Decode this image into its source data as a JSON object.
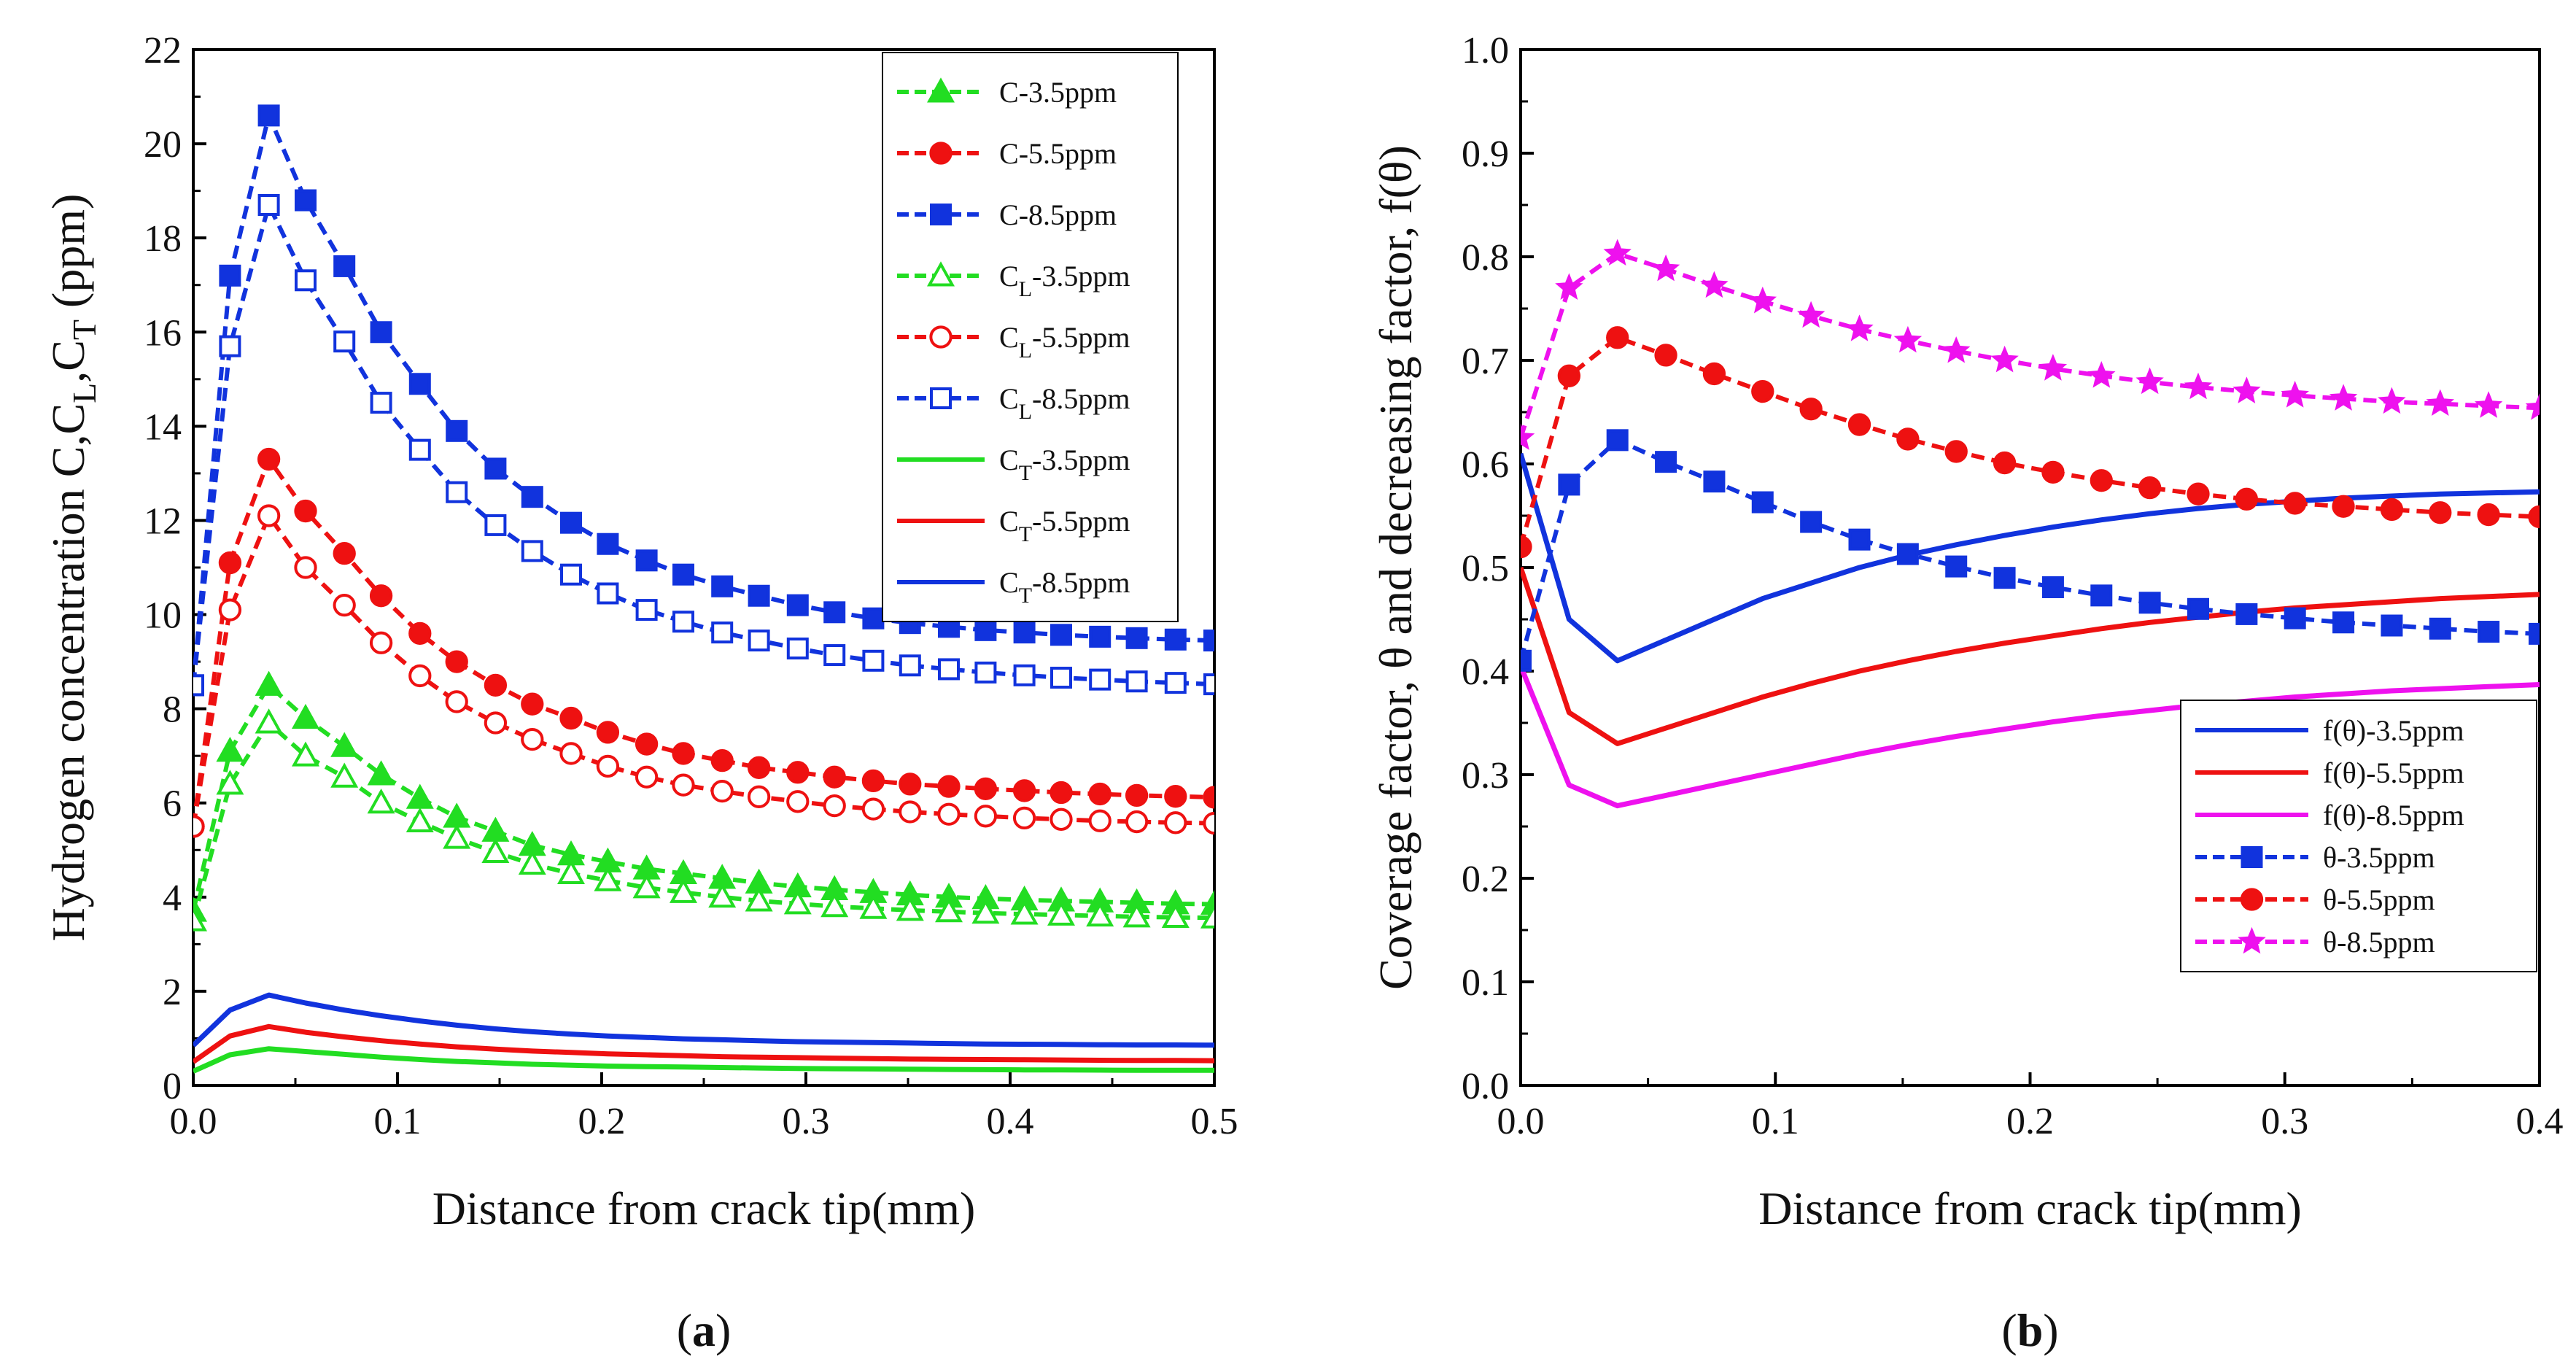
{
  "chart_data": [
    {
      "type": "line",
      "panel_label": "(a)",
      "panel_label_letter": "a",
      "xlabel": "Distance from crack tip(mm)",
      "ylabel": "Hydrogen concentration C,C_L,C_T (ppm)",
      "ylabel_parts": [
        "Hydrogen concentration C,C",
        "L",
        ",C",
        "T",
        " (ppm)"
      ],
      "xlim": [
        0,
        0.5
      ],
      "ylim": [
        0,
        22
      ],
      "xticks": [
        "0.0",
        "0.1",
        "0.2",
        "0.3",
        "0.4",
        "0.5"
      ],
      "yticks": [
        "0",
        "2",
        "4",
        "6",
        "8",
        "10",
        "12",
        "14",
        "16",
        "18",
        "20",
        "22"
      ],
      "legend_position": "top-right",
      "x": [
        0.0,
        0.018,
        0.037,
        0.055,
        0.074,
        0.092,
        0.111,
        0.129,
        0.148,
        0.166,
        0.185,
        0.203,
        0.222,
        0.24,
        0.259,
        0.277,
        0.296,
        0.314,
        0.333,
        0.351,
        0.37,
        0.388,
        0.407,
        0.425,
        0.444,
        0.462,
        0.481,
        0.5
      ],
      "series": [
        {
          "name": "C-3.5ppm",
          "main": "C",
          "sub": "",
          "suffix": "-3.5ppm",
          "color": "#22dd22",
          "marker": "triangle",
          "filled": true,
          "dashed": true,
          "values": [
            3.7,
            7.1,
            8.5,
            7.8,
            7.2,
            6.6,
            6.1,
            5.7,
            5.4,
            5.1,
            4.9,
            4.75,
            4.6,
            4.5,
            4.4,
            4.3,
            4.22,
            4.16,
            4.1,
            4.05,
            4.0,
            3.97,
            3.94,
            3.92,
            3.9,
            3.88,
            3.86,
            3.85
          ]
        },
        {
          "name": "C-5.5ppm",
          "main": "C",
          "sub": "",
          "suffix": "-5.5ppm",
          "color": "#ee1111",
          "marker": "circle",
          "filled": true,
          "dashed": true,
          "values": [
            5.5,
            11.1,
            13.3,
            12.2,
            11.3,
            10.4,
            9.6,
            9.0,
            8.5,
            8.1,
            7.8,
            7.5,
            7.25,
            7.05,
            6.9,
            6.75,
            6.65,
            6.55,
            6.47,
            6.4,
            6.35,
            6.3,
            6.26,
            6.22,
            6.19,
            6.16,
            6.14,
            6.12
          ]
        },
        {
          "name": "C-8.5ppm",
          "main": "C",
          "sub": "",
          "suffix": "-8.5ppm",
          "color": "#1133dd",
          "marker": "square",
          "filled": true,
          "dashed": true,
          "values": [
            8.5,
            17.2,
            20.6,
            18.8,
            17.4,
            16.0,
            14.9,
            13.9,
            13.1,
            12.5,
            11.95,
            11.5,
            11.15,
            10.85,
            10.6,
            10.4,
            10.2,
            10.05,
            9.92,
            9.82,
            9.74,
            9.67,
            9.62,
            9.57,
            9.53,
            9.5,
            9.47,
            9.45
          ]
        },
        {
          "name": "C_L-3.5ppm",
          "main": "C",
          "sub": "L",
          "suffix": "-3.5ppm",
          "color": "#22dd22",
          "marker": "triangle",
          "filled": false,
          "dashed": true,
          "values": [
            3.5,
            6.4,
            7.7,
            7.0,
            6.55,
            6.0,
            5.6,
            5.25,
            4.95,
            4.7,
            4.5,
            4.35,
            4.2,
            4.1,
            4.0,
            3.92,
            3.86,
            3.8,
            3.76,
            3.72,
            3.69,
            3.66,
            3.64,
            3.62,
            3.6,
            3.58,
            3.57,
            3.56
          ]
        },
        {
          "name": "C_L-5.5ppm",
          "main": "C",
          "sub": "L",
          "suffix": "-5.5ppm",
          "color": "#ee1111",
          "marker": "circle",
          "filled": false,
          "dashed": true,
          "values": [
            5.5,
            10.1,
            12.1,
            11.0,
            10.2,
            9.4,
            8.7,
            8.15,
            7.7,
            7.35,
            7.05,
            6.78,
            6.55,
            6.38,
            6.25,
            6.13,
            6.03,
            5.94,
            5.87,
            5.81,
            5.76,
            5.72,
            5.68,
            5.65,
            5.62,
            5.6,
            5.58,
            5.57
          ]
        },
        {
          "name": "C_L-8.5ppm",
          "main": "C",
          "sub": "L",
          "suffix": "-8.5ppm",
          "color": "#1133dd",
          "marker": "square",
          "filled": false,
          "dashed": true,
          "values": [
            8.5,
            15.7,
            18.7,
            17.1,
            15.8,
            14.5,
            13.5,
            12.6,
            11.9,
            11.35,
            10.85,
            10.45,
            10.1,
            9.85,
            9.62,
            9.45,
            9.28,
            9.14,
            9.02,
            8.92,
            8.84,
            8.77,
            8.71,
            8.66,
            8.62,
            8.58,
            8.55,
            8.52
          ]
        },
        {
          "name": "C_T-3.5ppm",
          "main": "C",
          "sub": "T",
          "suffix": "-3.5ppm",
          "color": "#22dd22",
          "marker": "none",
          "filled": false,
          "dashed": false,
          "values": [
            0.3,
            0.65,
            0.78,
            0.72,
            0.66,
            0.6,
            0.55,
            0.51,
            0.48,
            0.45,
            0.43,
            0.41,
            0.4,
            0.39,
            0.38,
            0.37,
            0.36,
            0.355,
            0.35,
            0.345,
            0.34,
            0.335,
            0.33,
            0.33,
            0.325,
            0.32,
            0.32,
            0.32
          ]
        },
        {
          "name": "C_T-5.5ppm",
          "main": "C",
          "sub": "T",
          "suffix": "-5.5ppm",
          "color": "#ee1111",
          "marker": "none",
          "filled": false,
          "dashed": false,
          "values": [
            0.5,
            1.05,
            1.25,
            1.13,
            1.03,
            0.95,
            0.88,
            0.82,
            0.77,
            0.73,
            0.7,
            0.67,
            0.65,
            0.63,
            0.61,
            0.6,
            0.59,
            0.58,
            0.57,
            0.56,
            0.555,
            0.55,
            0.545,
            0.54,
            0.535,
            0.53,
            0.53,
            0.525
          ]
        },
        {
          "name": "C_T-8.5ppm",
          "main": "C",
          "sub": "T",
          "suffix": "-8.5ppm",
          "color": "#1133dd",
          "marker": "none",
          "filled": false,
          "dashed": false,
          "values": [
            0.85,
            1.6,
            1.92,
            1.75,
            1.6,
            1.48,
            1.37,
            1.28,
            1.2,
            1.14,
            1.09,
            1.05,
            1.02,
            0.99,
            0.97,
            0.95,
            0.93,
            0.92,
            0.91,
            0.9,
            0.89,
            0.88,
            0.875,
            0.87,
            0.865,
            0.86,
            0.86,
            0.855
          ]
        }
      ]
    },
    {
      "type": "line",
      "panel_label": "(b)",
      "panel_label_letter": "b",
      "xlabel": "Distance from crack tip(mm)",
      "ylabel": "Coverage factor, θ and decreasing factor, f(θ)",
      "ylabel_parts": [
        "Coverage factor, θ and decreasing factor, f(θ)"
      ],
      "xlim": [
        0,
        0.4
      ],
      "ylim": [
        0,
        1.0
      ],
      "xticks": [
        "0.0",
        "0.1",
        "0.2",
        "0.3",
        "0.4"
      ],
      "yticks": [
        "0.0",
        "0.1",
        "0.2",
        "0.3",
        "0.4",
        "0.5",
        "0.6",
        "0.7",
        "0.8",
        "0.9",
        "1.0"
      ],
      "legend_position": "bottom-right",
      "x": [
        0.0,
        0.019,
        0.038,
        0.057,
        0.076,
        0.095,
        0.114,
        0.133,
        0.152,
        0.171,
        0.19,
        0.209,
        0.228,
        0.247,
        0.266,
        0.285,
        0.304,
        0.323,
        0.342,
        0.361,
        0.38,
        0.4
      ],
      "series": [
        {
          "name": "f(θ)-3.5ppm",
          "main": "f(θ)",
          "sub": "",
          "suffix": "-3.5ppm",
          "color": "#1133dd",
          "marker": "none",
          "filled": false,
          "dashed": false,
          "values": [
            0.61,
            0.45,
            0.41,
            0.43,
            0.45,
            0.47,
            0.485,
            0.5,
            0.512,
            0.522,
            0.531,
            0.539,
            0.546,
            0.552,
            0.557,
            0.561,
            0.564,
            0.567,
            0.569,
            0.571,
            0.572,
            0.573
          ]
        },
        {
          "name": "f(θ)-5.5ppm",
          "main": "f(θ)",
          "sub": "",
          "suffix": "-5.5ppm",
          "color": "#ee1111",
          "marker": "none",
          "filled": false,
          "dashed": false,
          "values": [
            0.5,
            0.36,
            0.33,
            0.345,
            0.36,
            0.375,
            0.388,
            0.4,
            0.41,
            0.419,
            0.427,
            0.434,
            0.441,
            0.447,
            0.452,
            0.457,
            0.461,
            0.464,
            0.467,
            0.47,
            0.472,
            0.474
          ]
        },
        {
          "name": "f(θ)-8.5ppm",
          "main": "f(θ)",
          "sub": "",
          "suffix": "-8.5ppm",
          "color": "#ee11ee",
          "marker": "none",
          "filled": false,
          "dashed": false,
          "values": [
            0.405,
            0.29,
            0.27,
            0.28,
            0.29,
            0.3,
            0.31,
            0.32,
            0.329,
            0.337,
            0.344,
            0.351,
            0.357,
            0.362,
            0.367,
            0.371,
            0.375,
            0.378,
            0.381,
            0.383,
            0.385,
            0.387
          ]
        },
        {
          "name": "θ-3.5ppm",
          "main": "θ",
          "sub": "",
          "suffix": "-3.5ppm",
          "color": "#1133dd",
          "marker": "square",
          "filled": true,
          "dashed": true,
          "values": [
            0.41,
            0.58,
            0.623,
            0.602,
            0.583,
            0.563,
            0.544,
            0.527,
            0.513,
            0.501,
            0.49,
            0.481,
            0.473,
            0.466,
            0.46,
            0.455,
            0.451,
            0.447,
            0.444,
            0.441,
            0.438,
            0.436
          ]
        },
        {
          "name": "θ-5.5ppm",
          "main": "θ",
          "sub": "",
          "suffix": "-5.5ppm",
          "color": "#ee1111",
          "marker": "circle",
          "filled": true,
          "dashed": true,
          "values": [
            0.52,
            0.685,
            0.722,
            0.705,
            0.687,
            0.67,
            0.653,
            0.638,
            0.624,
            0.612,
            0.601,
            0.592,
            0.584,
            0.577,
            0.571,
            0.566,
            0.562,
            0.559,
            0.556,
            0.553,
            0.551,
            0.549
          ]
        },
        {
          "name": "θ-8.5ppm",
          "main": "θ",
          "sub": "",
          "suffix": "-8.5ppm",
          "color": "#ee11ee",
          "marker": "star",
          "filled": true,
          "dashed": true,
          "values": [
            0.625,
            0.77,
            0.803,
            0.788,
            0.772,
            0.757,
            0.743,
            0.73,
            0.719,
            0.709,
            0.7,
            0.692,
            0.685,
            0.679,
            0.674,
            0.67,
            0.666,
            0.663,
            0.66,
            0.658,
            0.656,
            0.654
          ]
        }
      ]
    }
  ]
}
